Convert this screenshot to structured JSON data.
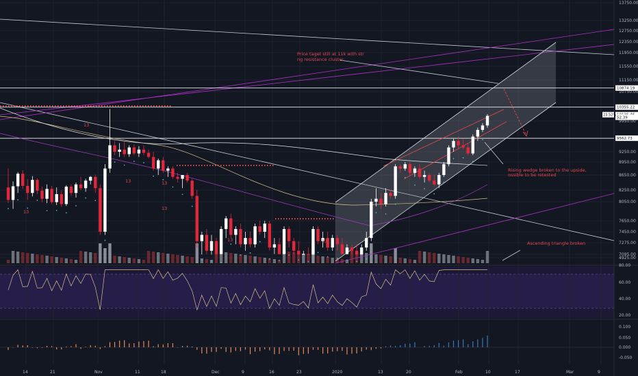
{
  "chart_data": {
    "type": "candlestick",
    "title": "",
    "price_axis": {
      "ticks": [
        13750.0,
        13250.0,
        12750.0,
        12350.0,
        11950.0,
        11550.0,
        11150.0,
        10750.0,
        10350.0,
        9950.0,
        9550.0,
        9250.0,
        8950.0,
        8650.0,
        8250.0,
        8050.0,
        7650.0,
        7450.0,
        7275.0,
        7095.0,
        4925.0
      ],
      "tick_labels": [
        "13750.00",
        "13250.00",
        "12750.00",
        "12350.00",
        "11950.00",
        "11550.00",
        "11150.00",
        "10750.00",
        "10350.00",
        "9950.00",
        "9550.00",
        "9250.00",
        "8950.00",
        "8650.00",
        "8250.00",
        "8050.00",
        "7650.00",
        "7450.00",
        "7275.00",
        "7095.00",
        "4925.00"
      ],
      "markers": [
        {
          "label": "10874.19",
          "price": 10874.19,
          "color": "#ffffff"
        },
        {
          "label": "10355.22",
          "price": 10355.22,
          "color": "#ffffff"
        },
        {
          "label": "10135.46",
          "price": 10135.46,
          "color": "#ffffff"
        },
        {
          "label": "52.39",
          "price": 10060.0,
          "color": "#ffffff"
        },
        {
          "label": "9562.73",
          "price": 9562.73,
          "color": "#ffffff"
        }
      ],
      "percent_badge": "23.52%"
    },
    "rsi_axis": {
      "ticks": [
        80.0,
        60.0,
        40.0,
        20.0
      ],
      "tick_labels": [
        "80.00",
        "60.00",
        "40.00",
        "20.00"
      ]
    },
    "macd_axis": {
      "ticks": [
        0.1,
        0.05,
        0.0,
        -0.05
      ],
      "tick_labels": [
        "0.100",
        "0.050",
        "0.000",
        "-0.050"
      ]
    },
    "x_axis": {
      "labels": [
        "14",
        "21",
        "Nov",
        "11",
        "18",
        "Dec",
        "9",
        "16",
        "23",
        "2020",
        "13",
        "20",
        "Feb",
        "10",
        "17",
        "Mar",
        "9"
      ]
    },
    "annotations": [
      "Price taget still at 11k with strong resistance cluster",
      "Rising wedge broken to the upside, possible to be retested",
      "Ascending triangle broken"
    ],
    "candle_labels": [
      "13",
      "13",
      "13",
      "13",
      "13",
      "13",
      "13"
    ],
    "candles": [
      {
        "o": 8320,
        "h": 8800,
        "l": 8020,
        "c": 8080
      },
      {
        "o": 8080,
        "h": 8480,
        "l": 7900,
        "c": 8350
      },
      {
        "o": 8350,
        "h": 8720,
        "l": 8200,
        "c": 8680
      },
      {
        "o": 8680,
        "h": 8760,
        "l": 8280,
        "c": 8360
      },
      {
        "o": 8360,
        "h": 8540,
        "l": 8080,
        "c": 8200
      },
      {
        "o": 8200,
        "h": 8620,
        "l": 8140,
        "c": 8520
      },
      {
        "o": 8520,
        "h": 8560,
        "l": 8180,
        "c": 8240
      },
      {
        "o": 8240,
        "h": 8340,
        "l": 8040,
        "c": 8100
      },
      {
        "o": 8100,
        "h": 8400,
        "l": 8020,
        "c": 8280
      },
      {
        "o": 8280,
        "h": 8360,
        "l": 8000,
        "c": 8040
      },
      {
        "o": 8040,
        "h": 8320,
        "l": 7980,
        "c": 8180
      },
      {
        "o": 8180,
        "h": 8250,
        "l": 7940,
        "c": 8000
      },
      {
        "o": 8000,
        "h": 8380,
        "l": 7960,
        "c": 8340
      },
      {
        "o": 8340,
        "h": 8400,
        "l": 8150,
        "c": 8200
      },
      {
        "o": 8200,
        "h": 8450,
        "l": 8120,
        "c": 8400
      },
      {
        "o": 8400,
        "h": 8600,
        "l": 8250,
        "c": 8300
      },
      {
        "o": 8300,
        "h": 8550,
        "l": 8220,
        "c": 8500
      },
      {
        "o": 8500,
        "h": 8620,
        "l": 8400,
        "c": 8600
      },
      {
        "o": 8600,
        "h": 8660,
        "l": 8200,
        "c": 8300
      },
      {
        "o": 8300,
        "h": 8400,
        "l": 7400,
        "c": 7450
      },
      {
        "o": 7450,
        "h": 8900,
        "l": 7400,
        "c": 8800
      },
      {
        "o": 8800,
        "h": 10300,
        "l": 8700,
        "c": 9400
      },
      {
        "o": 9400,
        "h": 9500,
        "l": 9150,
        "c": 9250
      },
      {
        "o": 9250,
        "h": 9450,
        "l": 9100,
        "c": 9300
      },
      {
        "o": 9300,
        "h": 9500,
        "l": 9100,
        "c": 9180
      },
      {
        "o": 9180,
        "h": 9400,
        "l": 9100,
        "c": 9350
      },
      {
        "o": 9350,
        "h": 9420,
        "l": 9150,
        "c": 9200
      },
      {
        "o": 9200,
        "h": 9380,
        "l": 9100,
        "c": 9300
      },
      {
        "o": 9300,
        "h": 9400,
        "l": 9150,
        "c": 9220
      },
      {
        "o": 9220,
        "h": 9300,
        "l": 9050,
        "c": 9100
      },
      {
        "o": 9100,
        "h": 9250,
        "l": 8750,
        "c": 8800
      },
      {
        "o": 8800,
        "h": 9050,
        "l": 8650,
        "c": 9000
      },
      {
        "o": 9000,
        "h": 9100,
        "l": 8700,
        "c": 8750
      },
      {
        "o": 8750,
        "h": 8850,
        "l": 8600,
        "c": 8800
      },
      {
        "o": 8800,
        "h": 8850,
        "l": 8550,
        "c": 8600
      },
      {
        "o": 8600,
        "h": 8700,
        "l": 8450,
        "c": 8550
      },
      {
        "o": 8550,
        "h": 8650,
        "l": 8300,
        "c": 8650
      },
      {
        "o": 8650,
        "h": 8700,
        "l": 8450,
        "c": 8500
      },
      {
        "o": 8500,
        "h": 8550,
        "l": 8100,
        "c": 8150
      },
      {
        "o": 8150,
        "h": 8250,
        "l": 7200,
        "c": 7300
      },
      {
        "o": 7300,
        "h": 7450,
        "l": 7000,
        "c": 7400
      },
      {
        "o": 7400,
        "h": 7500,
        "l": 7100,
        "c": 7150
      },
      {
        "o": 7150,
        "h": 7400,
        "l": 6950,
        "c": 7300
      },
      {
        "o": 7300,
        "h": 7350,
        "l": 6900,
        "c": 7100
      },
      {
        "o": 7100,
        "h": 7550,
        "l": 7050,
        "c": 7500
      },
      {
        "o": 7500,
        "h": 7750,
        "l": 7350,
        "c": 7700
      },
      {
        "o": 7700,
        "h": 7800,
        "l": 7350,
        "c": 7400
      },
      {
        "o": 7400,
        "h": 7550,
        "l": 7250,
        "c": 7500
      },
      {
        "o": 7500,
        "h": 7600,
        "l": 7200,
        "c": 7250
      },
      {
        "o": 7250,
        "h": 7450,
        "l": 7150,
        "c": 7350
      },
      {
        "o": 7350,
        "h": 7450,
        "l": 7200,
        "c": 7250
      },
      {
        "o": 7250,
        "h": 7600,
        "l": 7200,
        "c": 7550
      },
      {
        "o": 7550,
        "h": 7650,
        "l": 7400,
        "c": 7450
      },
      {
        "o": 7450,
        "h": 7650,
        "l": 7350,
        "c": 7600
      },
      {
        "o": 7600,
        "h": 7650,
        "l": 7150,
        "c": 7200
      },
      {
        "o": 7200,
        "h": 7350,
        "l": 7100,
        "c": 7250
      },
      {
        "o": 7250,
        "h": 7350,
        "l": 7050,
        "c": 7100
      },
      {
        "o": 7100,
        "h": 7550,
        "l": 7050,
        "c": 7500
      },
      {
        "o": 7500,
        "h": 7550,
        "l": 7200,
        "c": 7300
      },
      {
        "o": 7300,
        "h": 7350,
        "l": 7050,
        "c": 7150
      },
      {
        "o": 7150,
        "h": 7300,
        "l": 6950,
        "c": 7050
      },
      {
        "o": 7050,
        "h": 7150,
        "l": 6850,
        "c": 7100
      },
      {
        "o": 7100,
        "h": 7200,
        "l": 6880,
        "c": 6950
      },
      {
        "o": 6950,
        "h": 7550,
        "l": 6900,
        "c": 7500
      },
      {
        "o": 7500,
        "h": 7550,
        "l": 7250,
        "c": 7300
      },
      {
        "o": 7300,
        "h": 7450,
        "l": 7200,
        "c": 7350
      },
      {
        "o": 7350,
        "h": 7450,
        "l": 7150,
        "c": 7200
      },
      {
        "o": 7200,
        "h": 7400,
        "l": 7150,
        "c": 7350
      },
      {
        "o": 7350,
        "h": 7400,
        "l": 7150,
        "c": 7250
      },
      {
        "o": 7250,
        "h": 7350,
        "l": 7000,
        "c": 7100
      },
      {
        "o": 7100,
        "h": 7250,
        "l": 6950,
        "c": 7200
      },
      {
        "o": 7200,
        "h": 7250,
        "l": 7050,
        "c": 7150
      },
      {
        "o": 7150,
        "h": 7250,
        "l": 6950,
        "c": 7000
      },
      {
        "o": 7000,
        "h": 7250,
        "l": 6900,
        "c": 7200
      },
      {
        "o": 7200,
        "h": 7450,
        "l": 7150,
        "c": 7350
      },
      {
        "o": 7350,
        "h": 8100,
        "l": 7300,
        "c": 8050
      },
      {
        "o": 8050,
        "h": 8300,
        "l": 7950,
        "c": 8100
      },
      {
        "o": 8100,
        "h": 8200,
        "l": 7900,
        "c": 8000
      },
      {
        "o": 8000,
        "h": 8300,
        "l": 7950,
        "c": 8200
      },
      {
        "o": 8200,
        "h": 8250,
        "l": 8100,
        "c": 8150
      },
      {
        "o": 8150,
        "h": 8900,
        "l": 8100,
        "c": 8850
      },
      {
        "o": 8850,
        "h": 8900,
        "l": 8700,
        "c": 8800
      },
      {
        "o": 8800,
        "h": 8950,
        "l": 8750,
        "c": 8900
      },
      {
        "o": 8900,
        "h": 8950,
        "l": 8650,
        "c": 8700
      },
      {
        "o": 8700,
        "h": 8850,
        "l": 8600,
        "c": 8800
      },
      {
        "o": 8800,
        "h": 8900,
        "l": 8550,
        "c": 8600
      },
      {
        "o": 8600,
        "h": 8750,
        "l": 8450,
        "c": 8650
      },
      {
        "o": 8650,
        "h": 8700,
        "l": 8450,
        "c": 8500
      },
      {
        "o": 8500,
        "h": 8650,
        "l": 8350,
        "c": 8400
      },
      {
        "o": 8400,
        "h": 8700,
        "l": 8300,
        "c": 8650
      },
      {
        "o": 8650,
        "h": 8950,
        "l": 8600,
        "c": 8900
      },
      {
        "o": 8900,
        "h": 9400,
        "l": 8850,
        "c": 9350
      },
      {
        "o": 9350,
        "h": 9550,
        "l": 9250,
        "c": 9500
      },
      {
        "o": 9500,
        "h": 9600,
        "l": 9300,
        "c": 9400
      },
      {
        "o": 9400,
        "h": 9550,
        "l": 9300,
        "c": 9350
      },
      {
        "o": 9350,
        "h": 9450,
        "l": 9150,
        "c": 9200
      },
      {
        "o": 9200,
        "h": 9650,
        "l": 9150,
        "c": 9600
      },
      {
        "o": 9600,
        "h": 9800,
        "l": 9500,
        "c": 9750
      },
      {
        "o": 9750,
        "h": 9900,
        "l": 9700,
        "c": 9850
      },
      {
        "o": 9850,
        "h": 10150,
        "l": 9800,
        "c": 10100
      }
    ]
  }
}
